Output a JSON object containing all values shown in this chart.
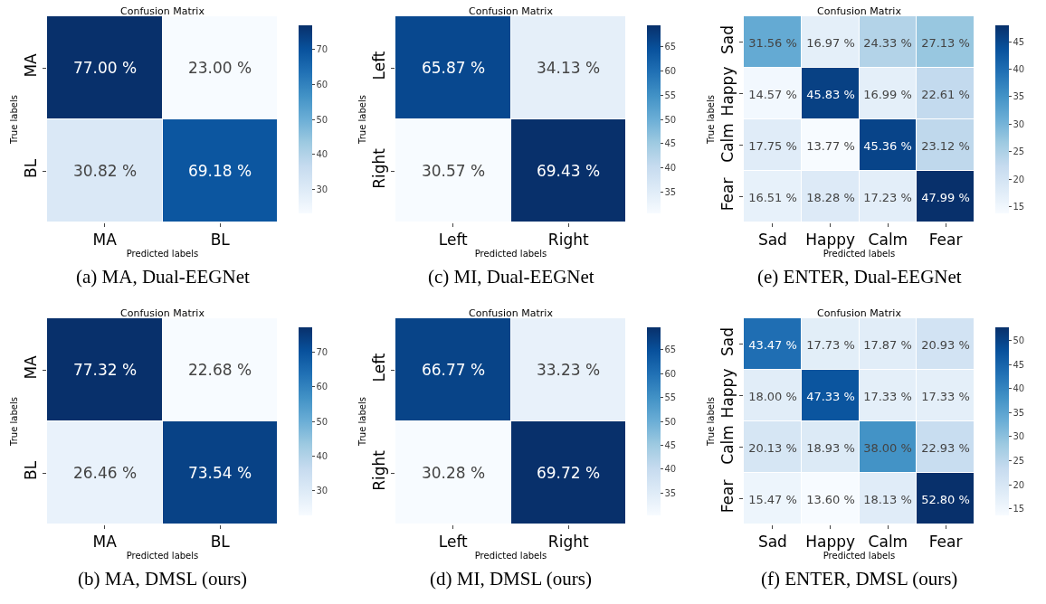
{
  "chart_data": [
    {
      "type": "heatmap",
      "title": "Confusion Matrix",
      "xlabel": "Predicted labels",
      "ylabel": "True labels",
      "categories": [
        "MA",
        "BL"
      ],
      "y_categories": [
        "MA",
        "BL"
      ],
      "cells": [
        [
          77.0,
          23.0
        ],
        [
          30.82,
          69.18
        ]
      ],
      "cell_labels": [
        [
          "77.00 %",
          "23.00 %"
        ],
        [
          "30.82 %",
          "69.18 %"
        ]
      ],
      "clim": [
        23.0,
        77.0
      ],
      "cticks": [
        30,
        40,
        50,
        60,
        70
      ],
      "annotations": [
        "(a) MA, Dual-EEGNet"
      ]
    },
    {
      "type": "heatmap",
      "title": "Confusion Matrix",
      "xlabel": "Predicted labels",
      "ylabel": "True labels",
      "categories": [
        "Left",
        "Right"
      ],
      "y_categories": [
        "Left",
        "Right"
      ],
      "cells": [
        [
          65.87,
          34.13
        ],
        [
          30.57,
          69.43
        ]
      ],
      "cell_labels": [
        [
          "65.87 %",
          "34.13 %"
        ],
        [
          "30.57 %",
          "69.43 %"
        ]
      ],
      "clim": [
        30.57,
        69.43
      ],
      "cticks": [
        35,
        40,
        45,
        50,
        55,
        60,
        65
      ],
      "annotations": [
        "(c) MI, Dual-EEGNet"
      ]
    },
    {
      "type": "heatmap",
      "title": "Confusion Matrix",
      "xlabel": "Predicted labels",
      "ylabel": "True labels",
      "categories": [
        "Sad",
        "Happy",
        "Calm",
        "Fear"
      ],
      "y_categories": [
        "Sad",
        "Happy",
        "Calm",
        "Fear"
      ],
      "cells": [
        [
          31.56,
          16.97,
          24.33,
          27.13
        ],
        [
          14.57,
          45.83,
          16.99,
          22.61
        ],
        [
          17.75,
          13.77,
          45.36,
          23.12
        ],
        [
          16.51,
          18.28,
          17.23,
          47.99
        ]
      ],
      "cell_labels": [
        [
          "31.56 %",
          "16.97 %",
          "24.33 %",
          "27.13 %"
        ],
        [
          "14.57 %",
          "45.83 %",
          "16.99 %",
          "22.61 %"
        ],
        [
          "17.75 %",
          "13.77 %",
          "45.36 %",
          "23.12 %"
        ],
        [
          "16.51 %",
          "18.28 %",
          "17.23 %",
          "47.99 %"
        ]
      ],
      "clim": [
        13.77,
        47.99
      ],
      "cticks": [
        15,
        20,
        25,
        30,
        35,
        40,
        45
      ],
      "annotations": [
        "(e) ENTER, Dual-EEGNet"
      ]
    },
    {
      "type": "heatmap",
      "title": "Confusion Matrix",
      "xlabel": "Predicted labels",
      "ylabel": "True labels",
      "categories": [
        "MA",
        "BL"
      ],
      "y_categories": [
        "MA",
        "BL"
      ],
      "cells": [
        [
          77.32,
          22.68
        ],
        [
          26.46,
          73.54
        ]
      ],
      "cell_labels": [
        [
          "77.32 %",
          "22.68 %"
        ],
        [
          "26.46 %",
          "73.54 %"
        ]
      ],
      "clim": [
        22.68,
        77.32
      ],
      "cticks": [
        30,
        40,
        50,
        60,
        70
      ],
      "annotations": [
        "(b) MA, DMSL (ours)"
      ]
    },
    {
      "type": "heatmap",
      "title": "Confusion Matrix",
      "xlabel": "Predicted labels",
      "ylabel": "True labels",
      "categories": [
        "Left",
        "Right"
      ],
      "y_categories": [
        "Left",
        "Right"
      ],
      "cells": [
        [
          66.77,
          33.23
        ],
        [
          30.28,
          69.72
        ]
      ],
      "cell_labels": [
        [
          "66.77 %",
          "33.23 %"
        ],
        [
          "30.28 %",
          "69.72 %"
        ]
      ],
      "clim": [
        30.28,
        69.72
      ],
      "cticks": [
        35,
        40,
        45,
        50,
        55,
        60,
        65
      ],
      "annotations": [
        "(d) MI, DMSL (ours)"
      ]
    },
    {
      "type": "heatmap",
      "title": "Confusion Matrix",
      "xlabel": "Predicted labels",
      "ylabel": "True labels",
      "categories": [
        "Sad",
        "Happy",
        "Calm",
        "Fear"
      ],
      "y_categories": [
        "Sad",
        "Happy",
        "Calm",
        "Fear"
      ],
      "cells": [
        [
          43.47,
          17.73,
          17.87,
          20.93
        ],
        [
          18.0,
          47.33,
          17.33,
          17.33
        ],
        [
          20.13,
          18.93,
          38.0,
          22.93
        ],
        [
          15.47,
          13.6,
          18.13,
          52.8
        ]
      ],
      "cell_labels": [
        [
          "43.47 %",
          "17.73 %",
          "17.87 %",
          "20.93 %"
        ],
        [
          "18.00 %",
          "47.33 %",
          "17.33 %",
          "17.33 %"
        ],
        [
          "20.13 %",
          "18.93 %",
          "38.00 %",
          "22.93 %"
        ],
        [
          "15.47 %",
          "13.60 %",
          "18.13 %",
          "52.80 %"
        ]
      ],
      "clim": [
        13.6,
        52.8
      ],
      "cticks": [
        15,
        20,
        25,
        30,
        35,
        40,
        45,
        50
      ],
      "annotations": [
        "(f) ENTER, DMSL (ours)"
      ]
    }
  ]
}
